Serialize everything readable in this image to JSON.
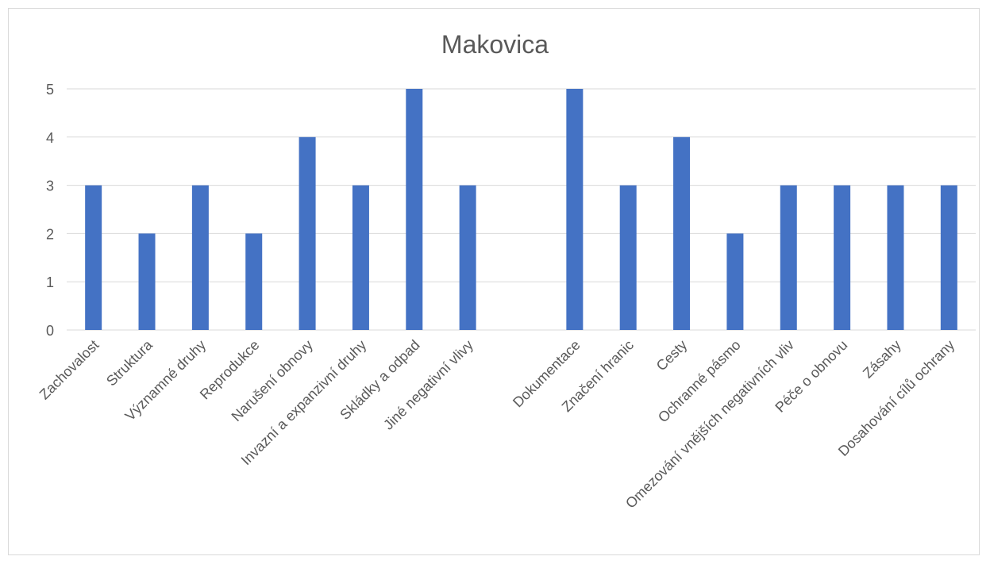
{
  "chart_data": {
    "type": "bar",
    "title": "Makovica",
    "xlabel": "",
    "ylabel": "",
    "ylim": [
      0,
      5
    ],
    "yticks": [
      0,
      1,
      2,
      3,
      4,
      5
    ],
    "grid": true,
    "legend": "none",
    "bar_color": "#4472C4",
    "grid_color": "#d9d9d9",
    "categories": [
      "Zachovalost",
      "Struktura",
      "Významné druhy",
      "Reprodukce",
      "Narušení obnovy",
      "Invazní a expanzivní druhy",
      "Skládky a odpad",
      "Jiné negativní vlivy",
      "",
      "Dokumentace",
      "Značení hranic",
      "Cesty",
      "Ochranné pásmo",
      "Omezování vnějších negativních vliv",
      "Péče o obnovu",
      "Zásahy",
      "Dosahování cílů ochrany"
    ],
    "values": [
      3,
      2,
      3,
      2,
      4,
      3,
      5,
      3,
      null,
      5,
      3,
      4,
      2,
      3,
      3,
      3,
      3
    ]
  }
}
